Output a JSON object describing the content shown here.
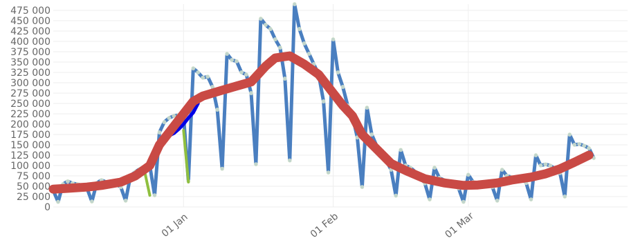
{
  "chart_data": {
    "type": "line",
    "title": "",
    "xlabel": "",
    "ylabel": "",
    "x_range": [
      "2020-12-05",
      "2021-04-03"
    ],
    "ylim": [
      0,
      490000
    ],
    "grid": true,
    "y_ticks": [
      {
        "value": 0,
        "label": "0"
      },
      {
        "value": 25000,
        "label": "25 000"
      },
      {
        "value": 50000,
        "label": "50 000"
      },
      {
        "value": 75000,
        "label": "75 000"
      },
      {
        "value": 100000,
        "label": "100 000"
      },
      {
        "value": 125000,
        "label": "125 000"
      },
      {
        "value": 150000,
        "label": "150 000"
      },
      {
        "value": 175000,
        "label": "175 000"
      },
      {
        "value": 200000,
        "label": "200 000"
      },
      {
        "value": 225000,
        "label": "225 000"
      },
      {
        "value": 250000,
        "label": "250 000"
      },
      {
        "value": 275000,
        "label": "275 000"
      },
      {
        "value": 300000,
        "label": "300 000"
      },
      {
        "value": 325000,
        "label": "325 000"
      },
      {
        "value": 350000,
        "label": "350 000"
      },
      {
        "value": 375000,
        "label": "375 000"
      },
      {
        "value": 400000,
        "label": "400 000"
      },
      {
        "value": 425000,
        "label": "425 000"
      },
      {
        "value": 450000,
        "label": "450 000"
      },
      {
        "value": 475000,
        "label": "475 000"
      }
    ],
    "x_ticks": [
      {
        "date": "2021-01-01",
        "label": "01 Jan"
      },
      {
        "date": "2021-02-01",
        "label": "01 Feb"
      },
      {
        "date": "2021-03-01",
        "label": "01 Mar"
      }
    ],
    "series": [
      {
        "color": "#4a7fc0",
        "point_color": "#eaf2d0",
        "line_width": 5,
        "points": [
          [
            "2020-12-05",
            40000
          ],
          [
            "2020-12-06",
            12000
          ],
          [
            "2020-12-07",
            55000
          ],
          [
            "2020-12-08",
            62000
          ],
          [
            "2020-12-09",
            57000
          ],
          [
            "2020-12-10",
            55000
          ],
          [
            "2020-12-11",
            52000
          ],
          [
            "2020-12-12",
            45000
          ],
          [
            "2020-12-13",
            13000
          ],
          [
            "2020-12-14",
            58000
          ],
          [
            "2020-12-15",
            65000
          ],
          [
            "2020-12-16",
            60000
          ],
          [
            "2020-12-17",
            58000
          ],
          [
            "2020-12-18",
            55000
          ],
          [
            "2020-12-19",
            48000
          ],
          [
            "2020-12-20",
            15000
          ],
          [
            "2020-12-21",
            75000
          ],
          [
            "2020-12-22",
            85000
          ],
          [
            "2020-12-23",
            92000
          ],
          [
            "2020-12-24",
            98000
          ],
          [
            "2020-12-25",
            100000
          ],
          [
            "2020-12-26",
            28000
          ],
          [
            "2020-12-27",
            180000
          ],
          [
            "2020-12-28",
            205000
          ],
          [
            "2020-12-29",
            215000
          ],
          [
            "2020-12-30",
            220000
          ],
          [
            "2020-12-31",
            222000
          ],
          [
            "2021-01-01",
            220000
          ],
          [
            "2021-01-02",
            62000
          ],
          [
            "2021-01-03",
            335000
          ],
          [
            "2021-01-04",
            325000
          ],
          [
            "2021-01-05",
            312000
          ],
          [
            "2021-01-06",
            315000
          ],
          [
            "2021-01-07",
            290000
          ],
          [
            "2021-01-08",
            235000
          ],
          [
            "2021-01-09",
            92000
          ],
          [
            "2021-01-10",
            370000
          ],
          [
            "2021-01-11",
            355000
          ],
          [
            "2021-01-12",
            352000
          ],
          [
            "2021-01-13",
            325000
          ],
          [
            "2021-01-14",
            320000
          ],
          [
            "2021-01-15",
            275000
          ],
          [
            "2021-01-16",
            103000
          ],
          [
            "2021-01-17",
            455000
          ],
          [
            "2021-01-18",
            440000
          ],
          [
            "2021-01-19",
            430000
          ],
          [
            "2021-01-20",
            405000
          ],
          [
            "2021-01-21",
            385000
          ],
          [
            "2021-01-22",
            310000
          ],
          [
            "2021-01-23",
            112000
          ],
          [
            "2021-01-24",
            490000
          ],
          [
            "2021-01-25",
            430000
          ],
          [
            "2021-01-26",
            395000
          ],
          [
            "2021-01-27",
            370000
          ],
          [
            "2021-01-28",
            345000
          ],
          [
            "2021-01-29",
            320000
          ],
          [
            "2021-01-30",
            255000
          ],
          [
            "2021-01-31",
            83000
          ],
          [
            "2021-02-01",
            405000
          ],
          [
            "2021-02-02",
            325000
          ],
          [
            "2021-02-03",
            290000
          ],
          [
            "2021-02-04",
            245000
          ],
          [
            "2021-02-05",
            220000
          ],
          [
            "2021-02-06",
            168000
          ],
          [
            "2021-02-07",
            48000
          ],
          [
            "2021-02-08",
            240000
          ],
          [
            "2021-02-09",
            175000
          ],
          [
            "2021-02-10",
            148000
          ],
          [
            "2021-02-11",
            125000
          ],
          [
            "2021-02-12",
            112000
          ],
          [
            "2021-02-13",
            90000
          ],
          [
            "2021-02-14",
            27000
          ],
          [
            "2021-02-15",
            138000
          ],
          [
            "2021-02-16",
            100000
          ],
          [
            "2021-02-17",
            95000
          ],
          [
            "2021-02-18",
            85000
          ],
          [
            "2021-02-19",
            75000
          ],
          [
            "2021-02-20",
            57000
          ],
          [
            "2021-02-21",
            18000
          ],
          [
            "2021-02-22",
            95000
          ],
          [
            "2021-02-23",
            70000
          ],
          [
            "2021-02-24",
            65000
          ],
          [
            "2021-02-25",
            60000
          ],
          [
            "2021-02-26",
            55000
          ],
          [
            "2021-02-27",
            45000
          ],
          [
            "2021-02-28",
            12000
          ],
          [
            "2021-03-01",
            78000
          ],
          [
            "2021-03-02",
            60000
          ],
          [
            "2021-03-03",
            58000
          ],
          [
            "2021-03-04",
            55000
          ],
          [
            "2021-03-05",
            57000
          ],
          [
            "2021-03-06",
            48000
          ],
          [
            "2021-03-07",
            15000
          ],
          [
            "2021-03-08",
            90000
          ],
          [
            "2021-03-09",
            75000
          ],
          [
            "2021-03-10",
            72000
          ],
          [
            "2021-03-11",
            68000
          ],
          [
            "2021-03-12",
            70000
          ],
          [
            "2021-03-13",
            58000
          ],
          [
            "2021-03-14",
            18000
          ],
          [
            "2021-03-15",
            125000
          ],
          [
            "2021-03-16",
            100000
          ],
          [
            "2021-03-17",
            103000
          ],
          [
            "2021-03-18",
            100000
          ],
          [
            "2021-03-19",
            92000
          ],
          [
            "2021-03-20",
            82000
          ],
          [
            "2021-03-21",
            25000
          ],
          [
            "2021-03-22",
            175000
          ],
          [
            "2021-03-23",
            150000
          ],
          [
            "2021-03-24",
            152000
          ],
          [
            "2021-03-25",
            148000
          ],
          [
            "2021-03-26",
            142000
          ],
          [
            "2021-03-27",
            118000
          ]
        ]
      },
      {
        "color": "#0000e6",
        "line_width": 5,
        "points": [
          [
            "2020-12-27",
            160000
          ],
          [
            "2020-12-28",
            162000
          ],
          [
            "2020-12-29",
            172000
          ],
          [
            "2020-12-30",
            178000
          ],
          [
            "2020-12-31",
            188000
          ],
          [
            "2021-01-01",
            200000
          ],
          [
            "2021-01-02",
            215000
          ],
          [
            "2021-01-03",
            228000
          ],
          [
            "2021-01-04",
            250000
          ]
        ]
      },
      {
        "color": "#8fbf3f",
        "line_width": 4,
        "segments": [
          [
            [
              "2020-12-24",
              82000
            ],
            [
              "2020-12-25",
              28000
            ]
          ],
          [
            [
              "2021-01-01",
              185000
            ],
            [
              "2021-01-02",
              60000
            ]
          ]
        ]
      },
      {
        "color": "#c94a45",
        "line_width": 13,
        "points": [
          [
            "2020-12-05",
            43000
          ],
          [
            "2020-12-08",
            45000
          ],
          [
            "2020-12-12",
            48000
          ],
          [
            "2020-12-15",
            52000
          ],
          [
            "2020-12-19",
            60000
          ],
          [
            "2020-12-22",
            75000
          ],
          [
            "2020-12-25",
            100000
          ],
          [
            "2020-12-27",
            150000
          ],
          [
            "2020-12-29",
            180000
          ],
          [
            "2021-01-01",
            225000
          ],
          [
            "2021-01-03",
            255000
          ],
          [
            "2021-01-05",
            268000
          ],
          [
            "2021-01-09",
            282000
          ],
          [
            "2021-01-12",
            292000
          ],
          [
            "2021-01-15",
            302000
          ],
          [
            "2021-01-18",
            340000
          ],
          [
            "2021-01-20",
            360000
          ],
          [
            "2021-01-23",
            365000
          ],
          [
            "2021-01-26",
            345000
          ],
          [
            "2021-01-29",
            320000
          ],
          [
            "2021-02-01",
            275000
          ],
          [
            "2021-02-03",
            245000
          ],
          [
            "2021-02-05",
            220000
          ],
          [
            "2021-02-07",
            175000
          ],
          [
            "2021-02-10",
            140000
          ],
          [
            "2021-02-13",
            105000
          ],
          [
            "2021-02-16",
            88000
          ],
          [
            "2021-02-20",
            68000
          ],
          [
            "2021-02-24",
            58000
          ],
          [
            "2021-02-28",
            52000
          ],
          [
            "2021-03-03",
            53000
          ],
          [
            "2021-03-07",
            58000
          ],
          [
            "2021-03-10",
            65000
          ],
          [
            "2021-03-14",
            72000
          ],
          [
            "2021-03-17",
            80000
          ],
          [
            "2021-03-20",
            92000
          ],
          [
            "2021-03-23",
            108000
          ],
          [
            "2021-03-26",
            125000
          ]
        ]
      }
    ]
  }
}
